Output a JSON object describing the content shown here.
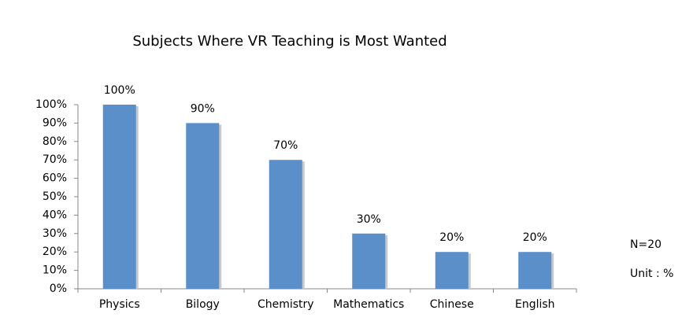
{
  "chart_data": {
    "type": "bar",
    "title": "Subjects Where VR Teaching is Most Wanted",
    "categories": [
      "Physics",
      "Bilogy",
      "Chemistry",
      "Mathematics",
      "Chinese",
      "English"
    ],
    "values": [
      100,
      90,
      70,
      30,
      20,
      20
    ],
    "value_labels": [
      "100%",
      "90%",
      "70%",
      "30%",
      "20%",
      "20%"
    ],
    "color": "#5b8fc9",
    "ylim": [
      0,
      100
    ],
    "yticks": [
      {
        "value": 0,
        "label": "0%"
      },
      {
        "value": 10,
        "label": "10%"
      },
      {
        "value": 20,
        "label": "20%"
      },
      {
        "value": 30,
        "label": "30%"
      },
      {
        "value": 40,
        "label": "40%"
      },
      {
        "value": 50,
        "label": "50%"
      },
      {
        "value": 60,
        "label": "60%"
      },
      {
        "value": 70,
        "label": "70%"
      },
      {
        "value": 80,
        "label": "80%"
      },
      {
        "value": 90,
        "label": "90%"
      },
      {
        "value": 100,
        "label": "100%"
      }
    ],
    "grid": false,
    "annotations": [
      "N=20",
      "Unit : %"
    ]
  }
}
